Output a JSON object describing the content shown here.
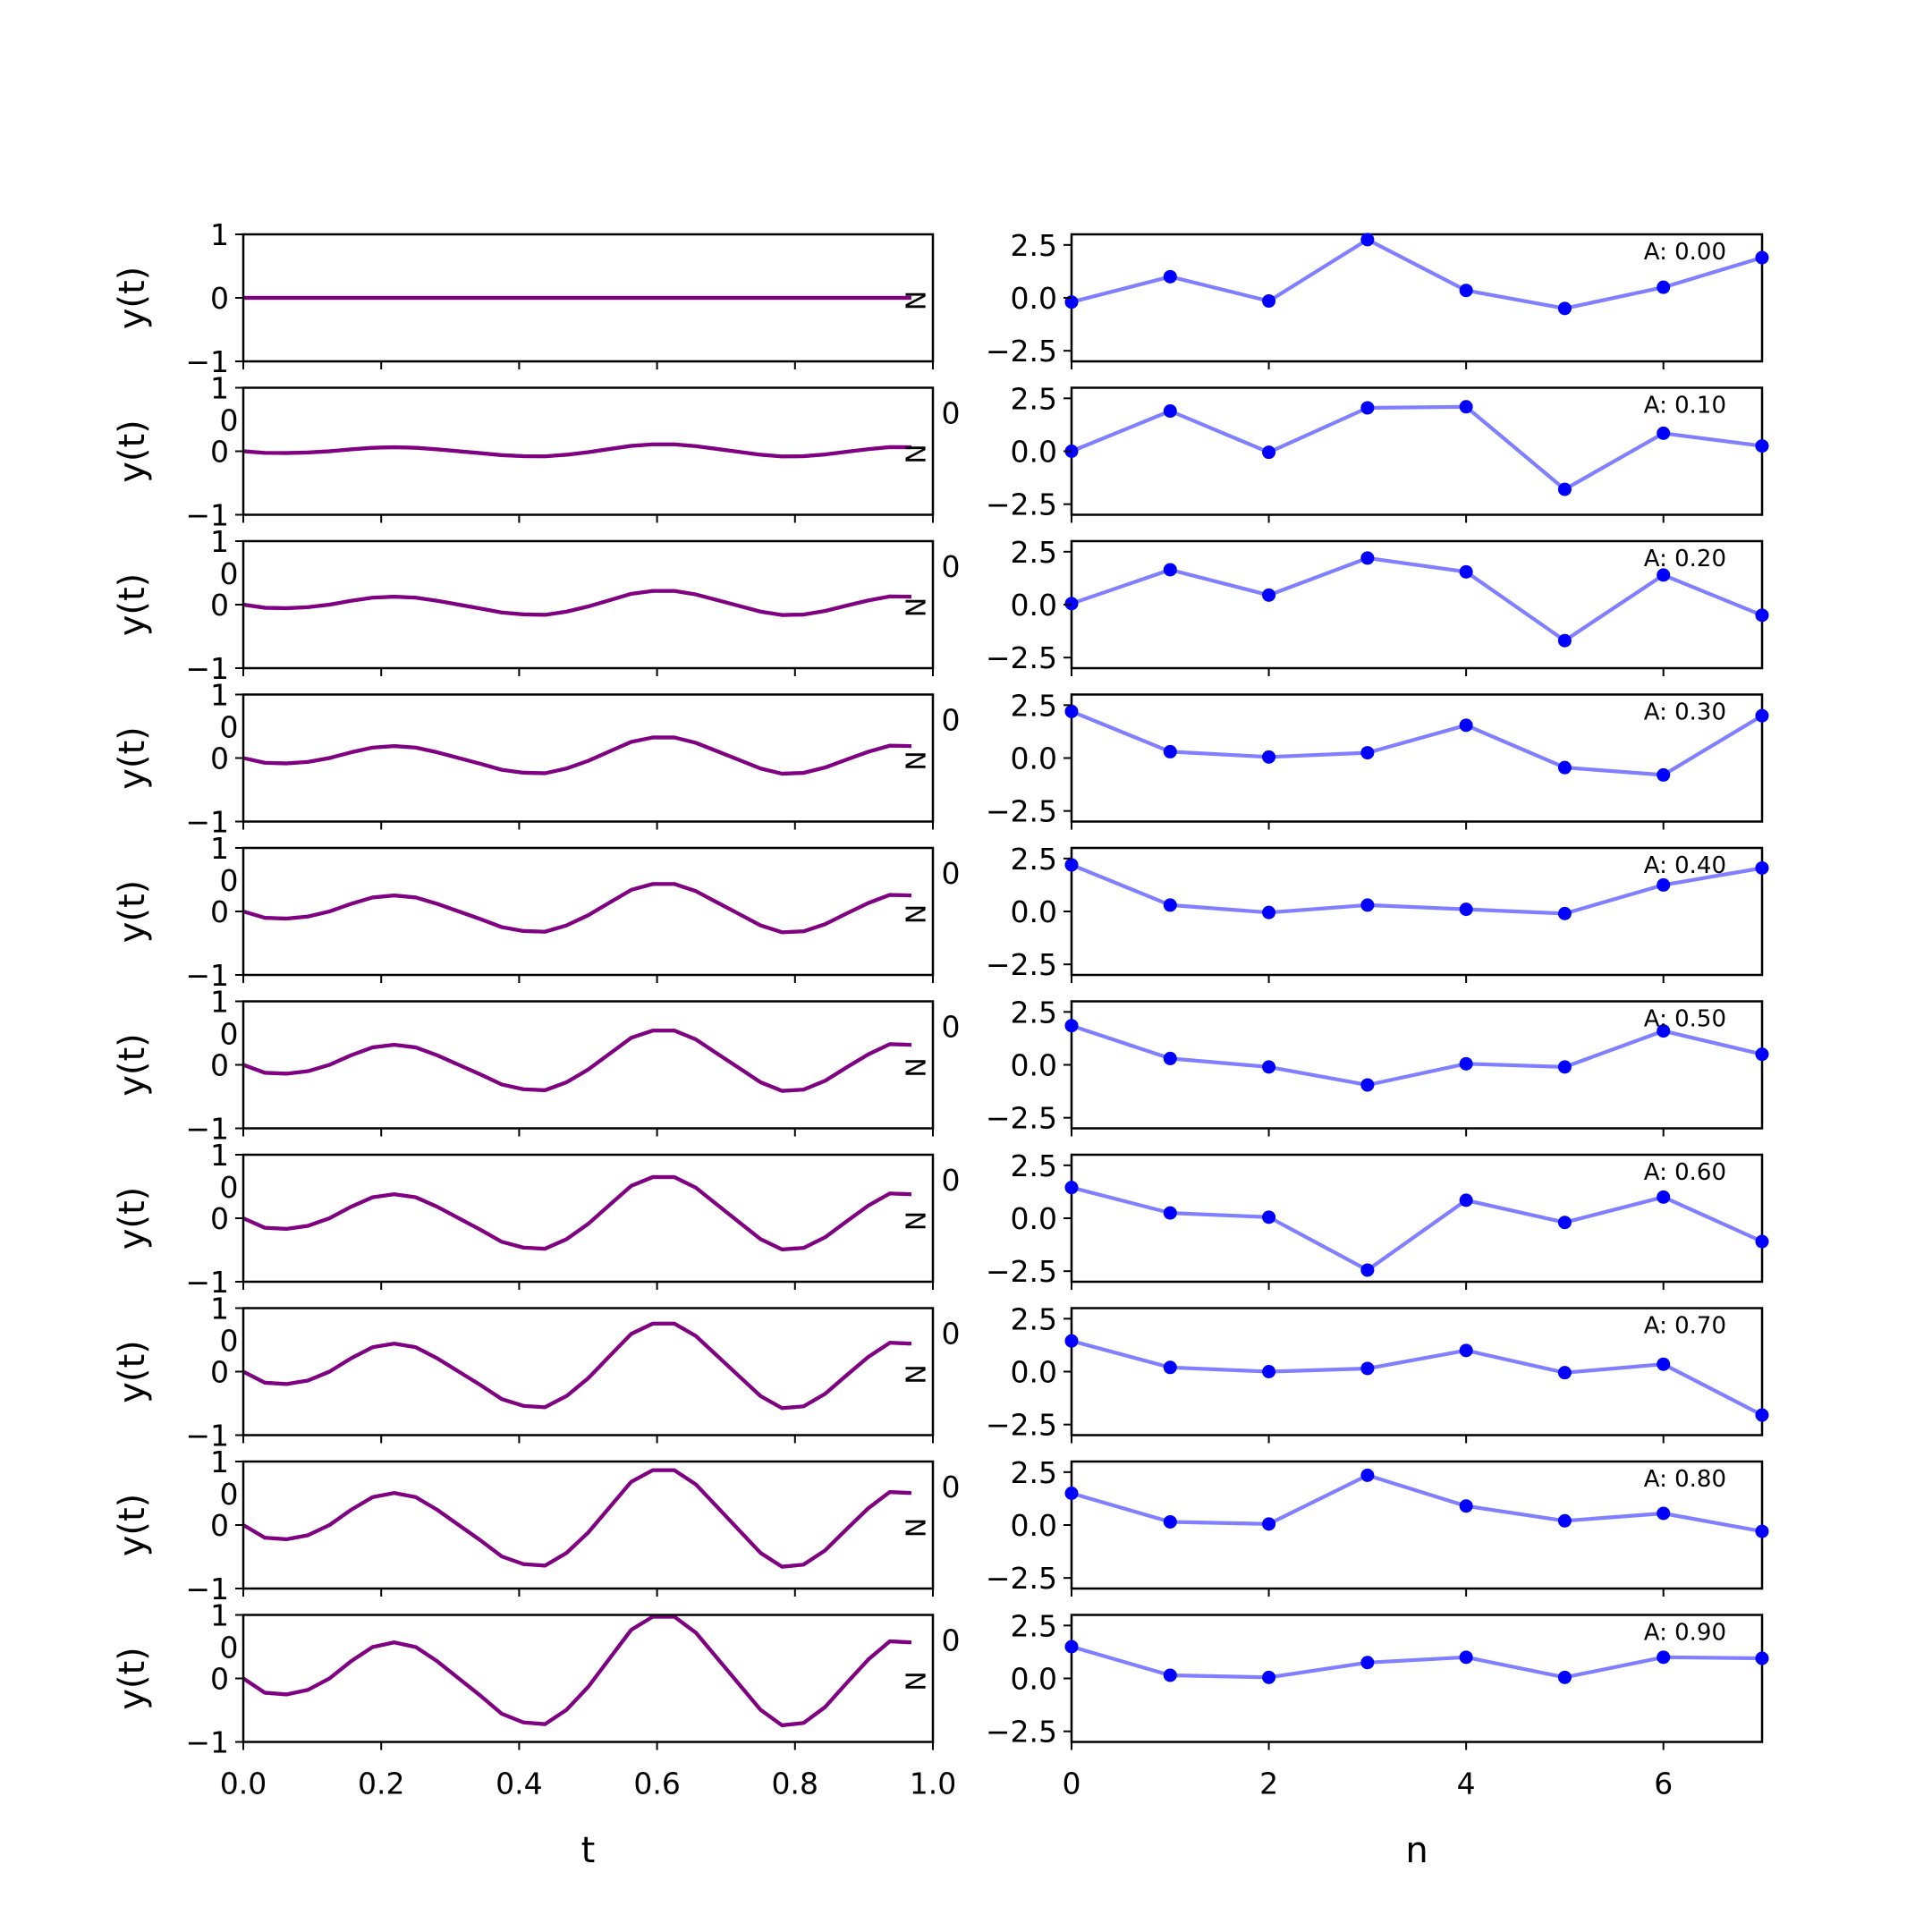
{
  "chart_data": [
    {
      "type": "line",
      "panel": "time-domain",
      "xlabel": "t",
      "ylabel": "y(t)",
      "xlim": [
        0,
        1
      ],
      "ylim": [
        -1,
        1
      ],
      "xticks": [
        "0.0",
        "0.2",
        "0.4",
        "0.6",
        "0.8",
        "1.0"
      ],
      "yticks": [
        "-1",
        "0",
        "1"
      ],
      "corner_label": "N",
      "line_colors": [
        "#0000ff",
        "#ff0000"
      ],
      "line_color_blend": "#800080",
      "x_step": 0.03125,
      "sample_count": 32,
      "amplitudes": [
        0.0,
        0.1,
        0.2,
        0.3,
        0.4,
        0.5,
        0.6,
        0.7,
        0.8,
        0.9
      ],
      "normalized_series": [
        0.0,
        -0.25,
        -0.28,
        -0.2,
        0.0,
        0.3,
        0.55,
        0.63,
        0.55,
        0.3,
        0.0,
        -0.3,
        -0.62,
        -0.77,
        -0.8,
        -0.55,
        -0.15,
        0.35,
        0.85,
        1.08,
        1.08,
        0.8,
        0.35,
        -0.1,
        -0.55,
        -0.82,
        -0.78,
        -0.5,
        -0.08,
        0.33,
        0.65,
        0.63
      ]
    },
    {
      "type": "line",
      "panel": "sequence",
      "xlabel": "n",
      "xlim": [
        0,
        7
      ],
      "ylim": [
        -3,
        3
      ],
      "xticks": [
        "0",
        "2",
        "4",
        "6"
      ],
      "yticks": [
        "2.5",
        "0.0",
        "-2.5"
      ],
      "series_color": "#0000ff",
      "series": [
        {
          "annotation": "A: 0.00",
          "x": [
            0,
            1,
            2,
            3,
            4,
            5,
            6,
            7
          ],
          "values": [
            -0.2,
            1.0,
            -0.15,
            2.75,
            0.35,
            -0.5,
            0.5,
            1.9
          ]
        },
        {
          "annotation": "A: 0.10",
          "x": [
            0,
            1,
            2,
            3,
            4,
            5,
            6,
            7
          ],
          "values": [
            0.0,
            1.9,
            -0.05,
            2.05,
            2.1,
            -1.8,
            0.85,
            0.25
          ]
        },
        {
          "annotation": "A: 0.20",
          "x": [
            0,
            1,
            2,
            3,
            4,
            5,
            6,
            7
          ],
          "values": [
            0.05,
            1.65,
            0.45,
            2.2,
            1.55,
            -1.7,
            1.4,
            -0.5
          ]
        },
        {
          "annotation": "A: 0.30",
          "x": [
            0,
            1,
            2,
            3,
            4,
            5,
            6,
            7
          ],
          "values": [
            2.2,
            0.3,
            0.05,
            0.25,
            1.55,
            -0.45,
            -0.8,
            2.0
          ]
        },
        {
          "annotation": "A: 0.40",
          "x": [
            0,
            1,
            2,
            3,
            4,
            5,
            6,
            7
          ],
          "values": [
            2.2,
            0.3,
            -0.05,
            0.3,
            0.1,
            -0.1,
            1.25,
            2.05
          ]
        },
        {
          "annotation": "A: 0.50",
          "x": [
            0,
            1,
            2,
            3,
            4,
            5,
            6,
            7
          ],
          "values": [
            1.85,
            0.3,
            -0.1,
            -0.95,
            0.05,
            -0.1,
            1.6,
            0.5
          ]
        },
        {
          "annotation": "A: 0.60",
          "x": [
            0,
            1,
            2,
            3,
            4,
            5,
            6,
            7
          ],
          "values": [
            1.45,
            0.25,
            0.05,
            -2.45,
            0.85,
            -0.2,
            1.0,
            -1.1
          ]
        },
        {
          "annotation": "A: 0.70",
          "x": [
            0,
            1,
            2,
            3,
            4,
            5,
            6,
            7
          ],
          "values": [
            1.45,
            0.2,
            0.0,
            0.15,
            1.0,
            -0.05,
            0.35,
            -2.05
          ]
        },
        {
          "annotation": "A: 0.80",
          "x": [
            0,
            1,
            2,
            3,
            4,
            5,
            6,
            7
          ],
          "values": [
            1.5,
            0.15,
            0.05,
            2.35,
            0.9,
            0.2,
            0.55,
            -0.3
          ]
        },
        {
          "annotation": "A: 0.90",
          "x": [
            0,
            1,
            2,
            3,
            4,
            5,
            6,
            7
          ],
          "values": [
            1.5,
            0.15,
            0.05,
            0.75,
            1.0,
            0.05,
            1.0,
            0.95
          ]
        }
      ]
    }
  ]
}
